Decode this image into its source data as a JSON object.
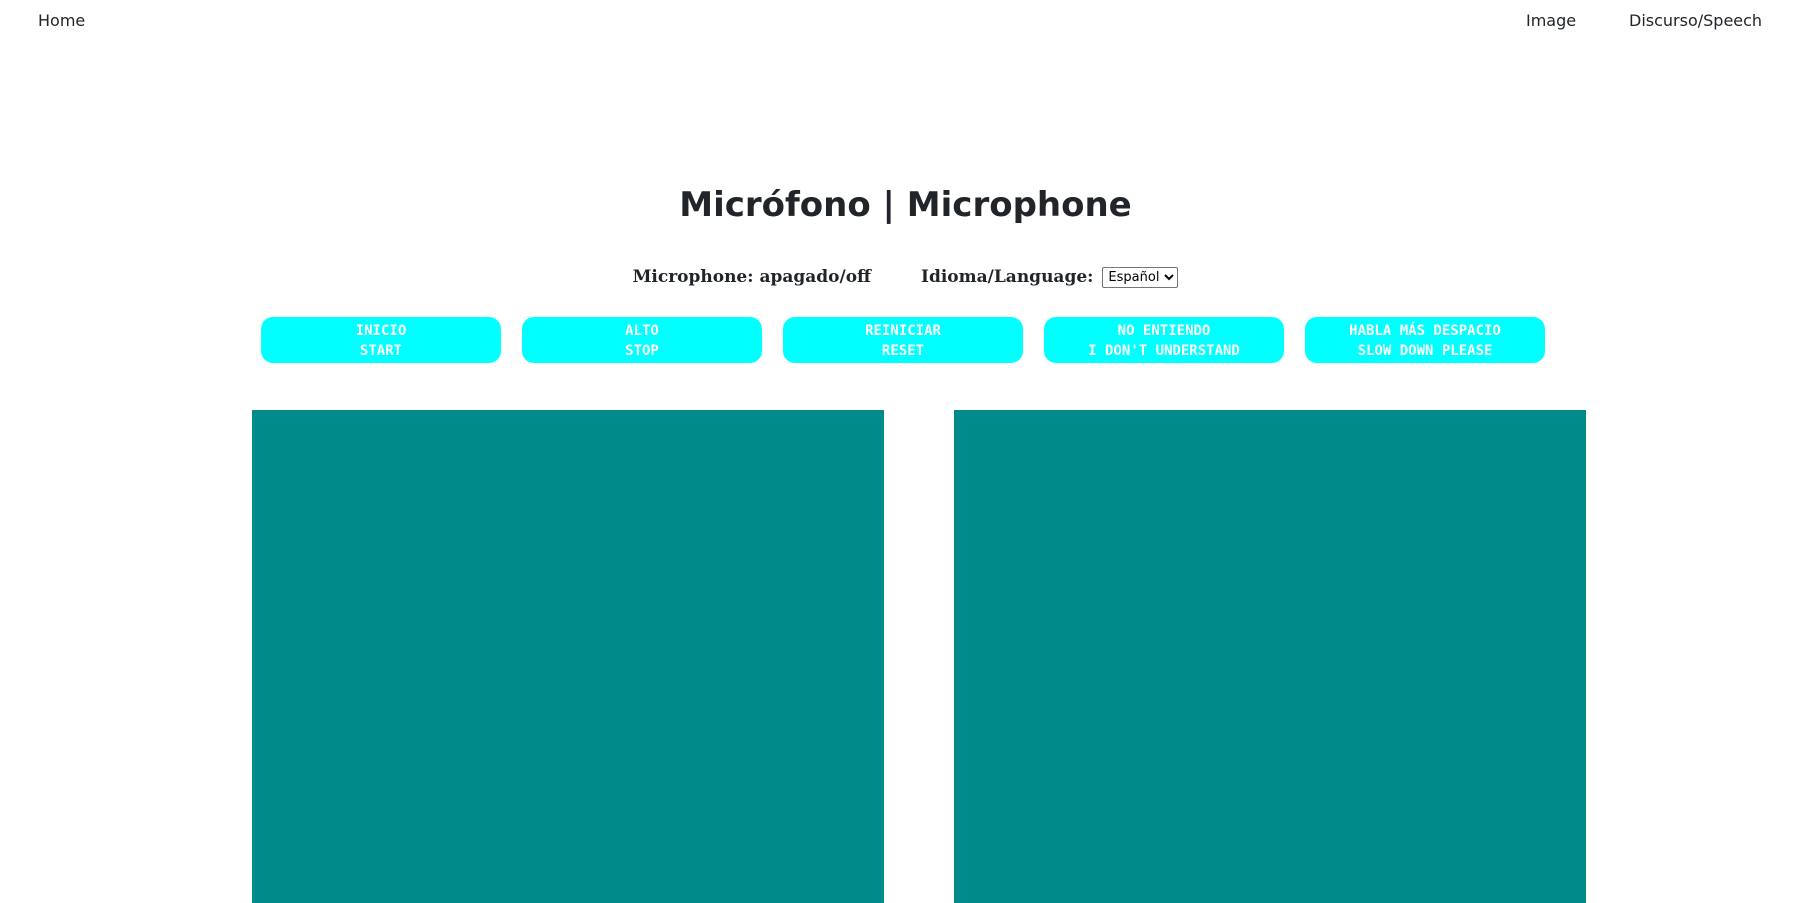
{
  "nav": {
    "home": "Home",
    "image": "Image",
    "speech": "Discurso/Speech"
  },
  "page": {
    "title": "Micrófono | Microphone"
  },
  "status": {
    "microphone": "Microphone: apagado/off",
    "language_label": "Idioma/Language:",
    "language_selected": "Español"
  },
  "buttons": [
    {
      "line1": "INICIO",
      "line2": "START"
    },
    {
      "line1": "ALTO",
      "line2": "STOP"
    },
    {
      "line1": "REINICIAR",
      "line2": "RESET"
    },
    {
      "line1": "NO ENTIENDO",
      "line2": "I DON'T UNDERSTAND"
    },
    {
      "line1": "HABLA MÁS DESPACIO",
      "line2": "SLOW DOWN PLEASE"
    }
  ],
  "colors": {
    "button_bg": "#00ffff",
    "button_text": "#ffffff",
    "panel_bg": "#008b8b",
    "text": "#212529"
  }
}
